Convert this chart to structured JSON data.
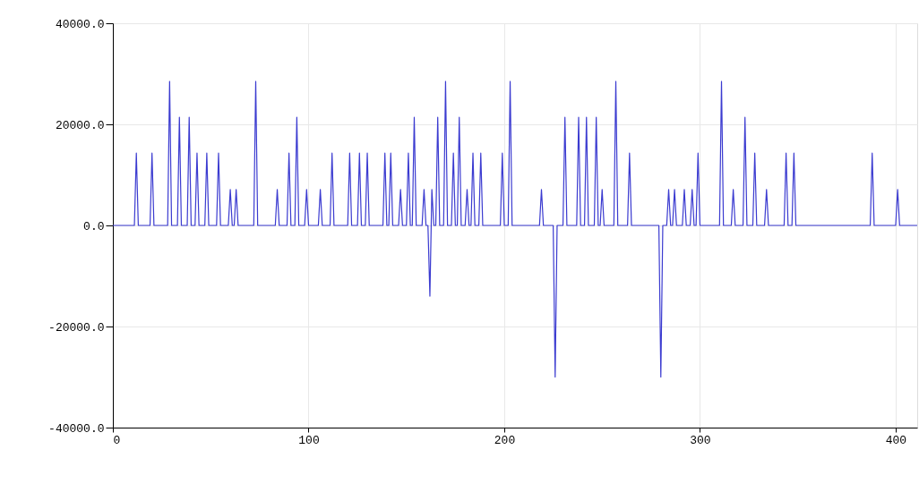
{
  "chart_data": {
    "type": "line",
    "x": [
      0,
      11,
      12,
      13,
      19,
      20,
      21,
      28,
      29,
      30,
      33,
      34,
      35,
      38,
      39,
      40,
      42,
      43,
      44,
      47,
      48,
      49,
      53,
      54,
      55,
      59,
      60,
      61,
      62,
      63,
      64,
      72,
      73,
      74,
      83,
      84,
      85,
      89,
      90,
      91,
      93,
      94,
      95,
      98,
      99,
      100,
      105,
      106,
      107,
      111,
      112,
      113,
      120,
      121,
      122,
      125,
      126,
      127,
      129,
      130,
      131,
      138,
      139,
      140,
      141,
      142,
      143,
      146,
      147,
      148,
      150,
      151,
      152,
      153,
      154,
      155,
      158,
      159,
      160,
      161,
      162,
      163,
      164,
      165,
      166,
      167,
      169,
      170,
      171,
      173,
      174,
      175,
      176,
      177,
      178,
      180,
      181,
      182,
      183,
      184,
      185,
      187,
      188,
      189,
      198,
      199,
      200,
      202,
      203,
      204,
      218,
      219,
      220,
      225,
      226,
      227,
      230,
      231,
      232,
      237,
      238,
      239,
      241,
      242,
      243,
      246,
      247,
      248,
      249,
      250,
      251,
      256,
      257,
      258,
      263,
      264,
      265,
      279,
      280,
      281,
      283,
      284,
      285,
      286,
      287,
      288,
      291,
      292,
      293,
      295,
      296,
      297,
      298,
      299,
      300,
      310,
      311,
      312,
      316,
      317,
      318,
      322,
      323,
      324,
      327,
      328,
      329,
      333,
      334,
      335,
      343,
      344,
      345,
      347,
      348,
      349,
      387,
      388,
      389,
      400,
      401,
      402,
      411
    ],
    "series": [
      {
        "color": "#3b3bd0",
        "values": [
          0,
          0,
          14300,
          0,
          0,
          14300,
          0,
          0,
          28500,
          0,
          0,
          21400,
          0,
          0,
          21400,
          0,
          0,
          14300,
          0,
          0,
          14300,
          0,
          0,
          14300,
          0,
          0,
          7100,
          0,
          0,
          7100,
          0,
          0,
          28500,
          0,
          0,
          7100,
          0,
          0,
          14300,
          0,
          0,
          21400,
          0,
          0,
          7100,
          0,
          0,
          7100,
          0,
          0,
          14300,
          0,
          0,
          14300,
          0,
          0,
          14300,
          0,
          0,
          14300,
          0,
          0,
          14300,
          0,
          0,
          14300,
          0,
          0,
          7100,
          0,
          0,
          14300,
          0,
          0,
          21400,
          0,
          0,
          7100,
          0,
          0,
          -14000,
          7100,
          0,
          0,
          21400,
          0,
          0,
          28500,
          0,
          0,
          14300,
          0,
          0,
          21400,
          0,
          0,
          7100,
          0,
          0,
          14300,
          0,
          0,
          14300,
          0,
          0,
          14300,
          0,
          0,
          28500,
          0,
          0,
          7100,
          0,
          0,
          -30000,
          0,
          0,
          21400,
          0,
          0,
          21400,
          0,
          0,
          21400,
          0,
          0,
          21400,
          0,
          0,
          7100,
          0,
          0,
          28500,
          0,
          0,
          14300,
          0,
          0,
          -30000,
          0,
          0,
          7100,
          0,
          0,
          7100,
          0,
          0,
          7100,
          0,
          0,
          7100,
          0,
          0,
          14300,
          0,
          0,
          28500,
          0,
          0,
          7100,
          0,
          0,
          21400,
          0,
          0,
          14300,
          0,
          0,
          7100,
          0,
          0,
          14300,
          0,
          0,
          14300,
          0,
          0,
          14300,
          0,
          0,
          7100,
          0,
          0
        ]
      }
    ],
    "xlim": [
      0,
      411
    ],
    "xticks": [
      0,
      100,
      200,
      300,
      400
    ],
    "ylim": [
      -40000,
      40000
    ],
    "yticks": [
      {
        "value": -40000,
        "label": "-40000.0"
      },
      {
        "value": -20000,
        "label": "-20000.0"
      },
      {
        "value": 0,
        "label": "0.0"
      },
      {
        "value": 20000,
        "label": "20000.0"
      },
      {
        "value": 40000,
        "label": "40000.0"
      }
    ],
    "grid": true,
    "marker": "none",
    "line_style": "solid"
  }
}
